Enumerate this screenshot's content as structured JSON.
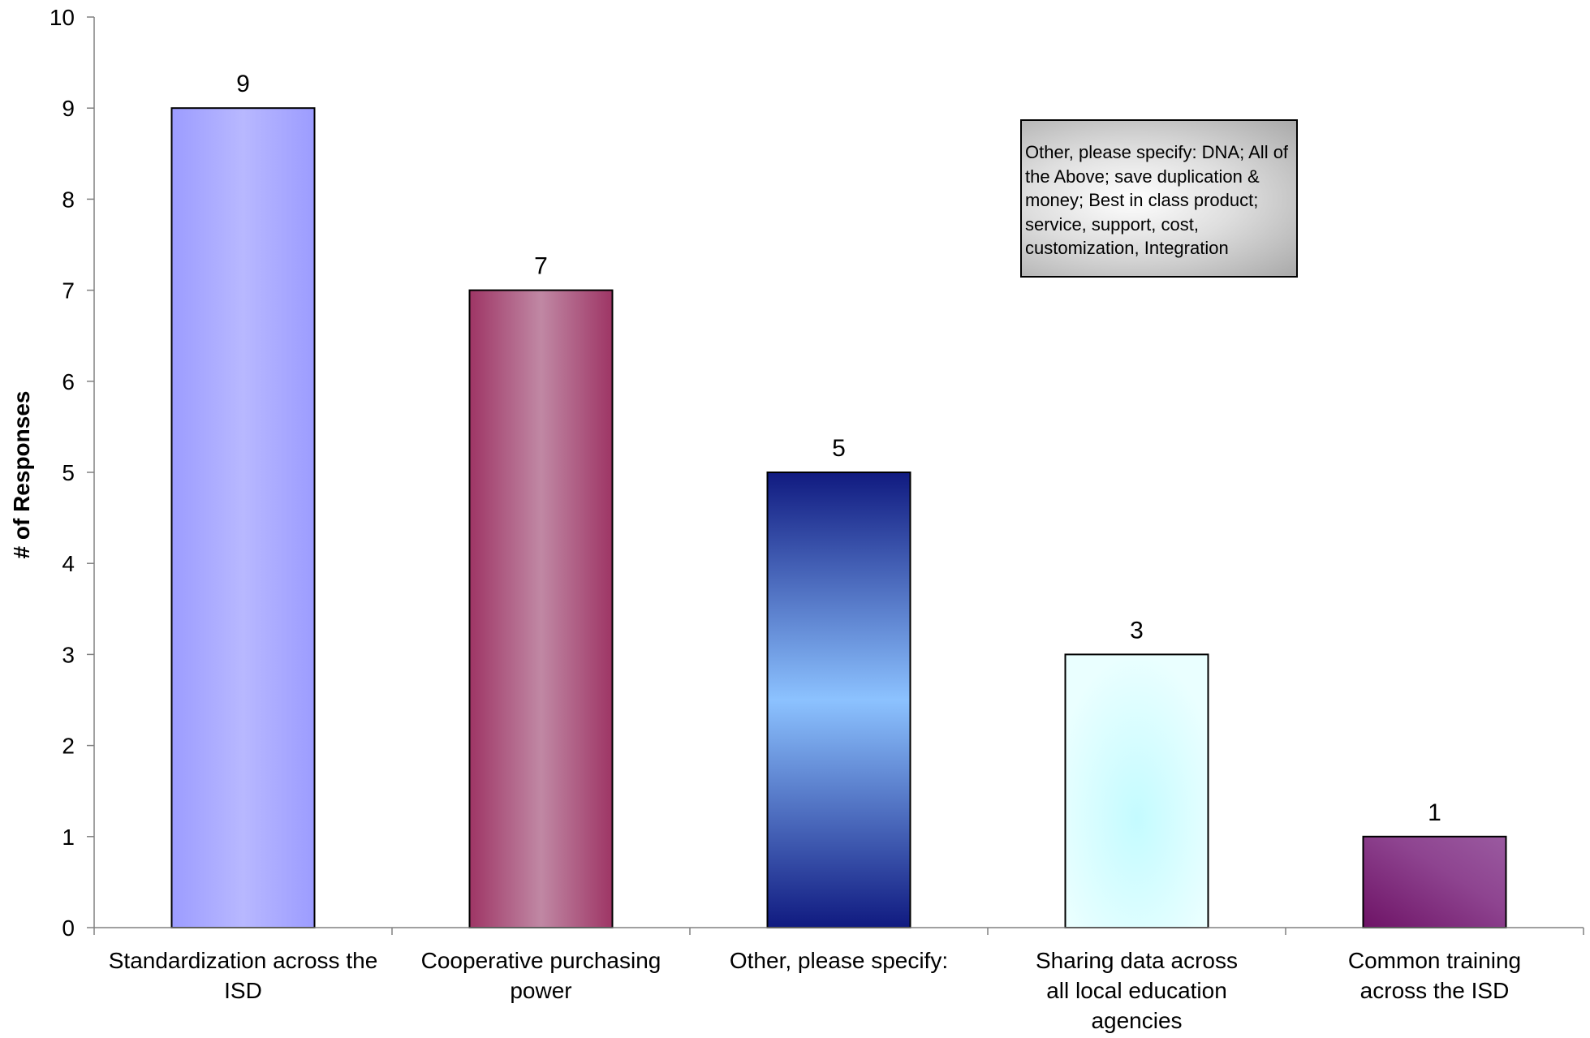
{
  "chart_data": {
    "type": "bar",
    "title": "",
    "xlabel": "",
    "ylabel": "# of Responses",
    "ylim": [
      0,
      10
    ],
    "yticks": [
      0,
      1,
      2,
      3,
      4,
      5,
      6,
      7,
      8,
      9,
      10
    ],
    "categories": [
      "Standardization across the ISD",
      "Cooperative purchasing power",
      "Other, please specify:",
      "Sharing data across all local education agencies",
      "Common training across the ISD"
    ],
    "category_label_lines": [
      [
        "Standardization across the",
        "ISD"
      ],
      [
        "Cooperative purchasing",
        "power"
      ],
      [
        "Other, please specify:"
      ],
      [
        "Sharing data across",
        "all local education",
        "agencies"
      ],
      [
        "Common training",
        "across the ISD"
      ]
    ],
    "values": [
      9,
      7,
      5,
      3,
      1
    ],
    "data_labels": [
      "9",
      "7",
      "5",
      "3",
      "1"
    ],
    "bar_colors": [
      "#a0a0ff",
      "#a23a6a",
      "#1a2a8a",
      "#d4ffff",
      "#7a2a7a"
    ],
    "grid": false,
    "legend": "none",
    "annotation": "Other, please specify: DNA; All of the Above; save duplication & money; Best in class product; service, support, cost, customization, Integration"
  }
}
